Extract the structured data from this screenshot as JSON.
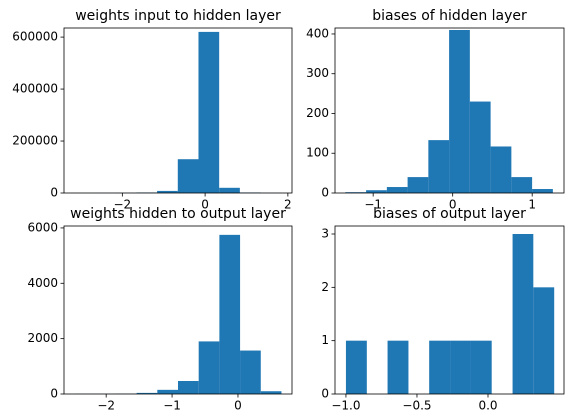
{
  "chart_data": [
    {
      "type": "histogram",
      "title": "weights input to hidden layer",
      "color": "#1f77b4",
      "bins": [
        -3.16,
        -2.66,
        -2.16,
        -1.66,
        -1.16,
        -0.66,
        -0.16,
        0.34,
        0.84,
        1.34,
        1.84
      ],
      "values": [
        200,
        300,
        500,
        2000,
        8000,
        130000,
        620000,
        20000,
        2000,
        500
      ],
      "xlim": [
        -3.41,
        2.1
      ],
      "xticks": [
        {
          "value": -2,
          "label": "−2"
        },
        0,
        2
      ],
      "ylim": [
        0,
        635000
      ],
      "yticks": [
        0,
        200000,
        400000,
        600000
      ]
    },
    {
      "type": "histogram",
      "title": "biases of hidden layer",
      "color": "#1f77b4",
      "bins": [
        -1.35,
        -1.089,
        -0.828,
        -0.567,
        -0.306,
        -0.045,
        0.216,
        0.477,
        0.738,
        0.999,
        1.26
      ],
      "values": [
        2,
        7,
        15,
        40,
        133,
        410,
        230,
        117,
        40,
        10
      ],
      "xlim": [
        -1.48,
        1.4
      ],
      "xticks": [
        {
          "value": -1,
          "label": "−1"
        },
        0,
        1
      ],
      "ylim": [
        0,
        415
      ],
      "yticks": [
        0,
        100,
        200,
        300,
        400
      ]
    },
    {
      "type": "histogram",
      "title": "weights hidden to output layer",
      "color": "#1f77b4",
      "bins": [
        -2.48,
        -2.166,
        -1.852,
        -1.538,
        -1.224,
        -0.91,
        -0.596,
        -0.282,
        0.032,
        0.346,
        0.66
      ],
      "values": [
        5,
        5,
        10,
        40,
        150,
        470,
        1900,
        5750,
        1570,
        100
      ],
      "xlim": [
        -2.64,
        0.82
      ],
      "xticks": [
        {
          "value": -2,
          "label": "−2"
        },
        {
          "value": -1,
          "label": "−1"
        },
        0
      ],
      "ylim": [
        0,
        6070
      ],
      "yticks": [
        0,
        2000,
        4000,
        6000
      ]
    },
    {
      "type": "histogram",
      "title": "biases of output layer",
      "color": "#1f77b4",
      "bins": [
        -1.0,
        -0.853,
        -0.707,
        -0.56,
        -0.414,
        -0.267,
        -0.12,
        0.026,
        0.173,
        0.319,
        0.466
      ],
      "values": [
        1,
        0,
        1,
        0,
        1,
        1,
        1,
        0,
        3,
        2
      ],
      "xlim": [
        -1.077,
        0.535
      ],
      "xticks": [
        {
          "value": -1,
          "label": "−1.0"
        },
        {
          "value": -0.5,
          "label": "−0.5"
        },
        {
          "value": 0,
          "label": "0.0"
        }
      ],
      "ylim": [
        0,
        3.15
      ],
      "yticks": [
        0,
        1,
        2,
        3
      ]
    }
  ]
}
